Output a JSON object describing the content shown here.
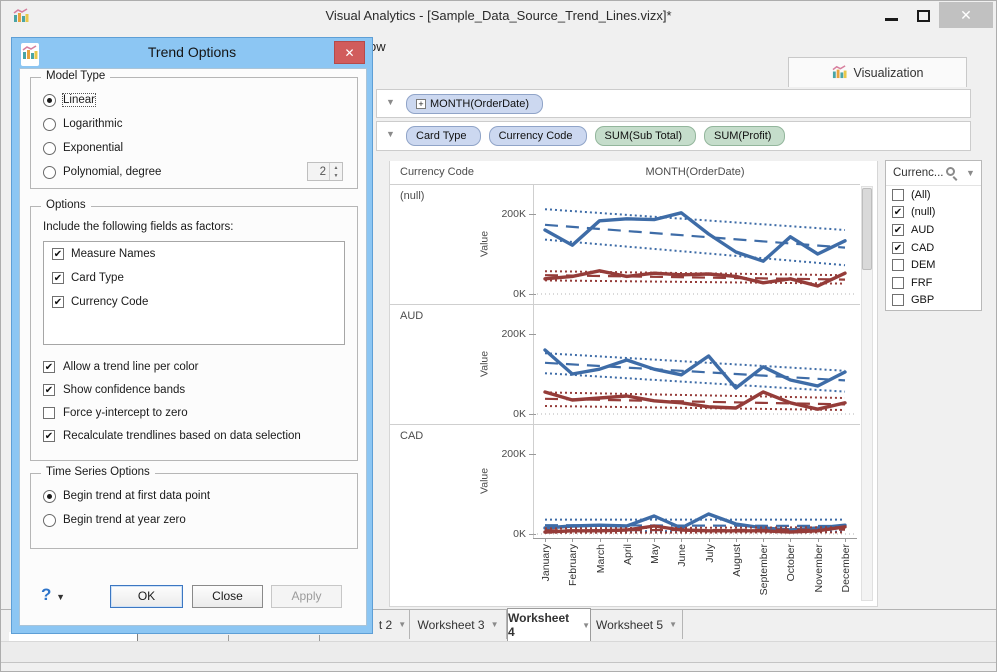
{
  "window": {
    "title": "Visual Analytics - [Sample_Data_Source_Trend_Lines.vizx]*"
  },
  "menubar": {
    "partial_label": "ow"
  },
  "viz_tab": {
    "label": "Visualization"
  },
  "icons": {
    "app": "bar-chart",
    "dialog": "bar-chart",
    "viz_tab": "bar-chart",
    "search": "magnifier",
    "dropdown": "chevron-down",
    "close": "x",
    "expand": "plus-box"
  },
  "shelves": {
    "row1": [
      {
        "label": "MONTH(OrderDate)",
        "type": "blue",
        "expand": true
      }
    ],
    "row2": [
      {
        "label": "Card Type",
        "type": "blue"
      },
      {
        "label": "Currency Code",
        "type": "blue"
      },
      {
        "label": "SUM(Sub Total)",
        "type": "green"
      },
      {
        "label": "SUM(Profit)",
        "type": "green"
      }
    ]
  },
  "dialog": {
    "title": "Trend Options",
    "close_glyph": "✕",
    "model_type": {
      "legend": "Model Type",
      "radios": [
        {
          "label": "Linear",
          "selected": true
        },
        {
          "label": "Logarithmic",
          "selected": false
        },
        {
          "label": "Exponential",
          "selected": false
        },
        {
          "label": "Polynomial, degree",
          "selected": false,
          "spinner": "2"
        }
      ]
    },
    "options": {
      "legend": "Options",
      "factors_label": "Include the following fields as factors:",
      "factors": [
        {
          "label": "Measure Names",
          "checked": true
        },
        {
          "label": "Card Type",
          "checked": true
        },
        {
          "label": "Currency Code",
          "checked": true
        }
      ],
      "checkboxes": [
        {
          "label": "Allow a trend line per color",
          "checked": true
        },
        {
          "label": "Show confidence bands",
          "checked": true
        },
        {
          "label": "Force y-intercept to zero",
          "checked": false
        },
        {
          "label": "Recalculate trendlines based on data selection",
          "checked": true
        }
      ]
    },
    "time_series": {
      "legend": "Time Series Options",
      "radios": [
        {
          "label": "Begin trend at first data point",
          "selected": true
        },
        {
          "label": "Begin trend at year zero",
          "selected": false
        }
      ]
    },
    "buttons": {
      "help": "?",
      "ok": "OK",
      "close": "Close",
      "apply": "Apply"
    }
  },
  "chart_data": {
    "type": "line",
    "row_header": "Currency Code",
    "col_header": "MONTH(OrderDate)",
    "ylabel": "Value",
    "yticks": [
      "200K",
      "0K"
    ],
    "ylim": [
      0,
      250
    ],
    "x": [
      "January",
      "February",
      "March",
      "April",
      "May",
      "June",
      "July",
      "August",
      "September",
      "October",
      "November",
      "December"
    ],
    "panels": [
      {
        "label": "(null)",
        "series": [
          {
            "name": "blue",
            "color": "#3e6ca7",
            "values": [
              160,
              122,
              183,
              188,
              186,
              203,
              150,
              105,
              82,
              143,
              100,
              133
            ],
            "trend": [
              173,
              116
            ],
            "band_upper": [
              212,
              160
            ],
            "band_lower": [
              136,
              72
            ]
          },
          {
            "name": "red",
            "color": "#953c39",
            "values": [
              38,
              44,
              58,
              44,
              52,
              48,
              50,
              44,
              28,
              38,
              20,
              52
            ],
            "trend": [
              47,
              36
            ],
            "band_upper": [
              57,
              47
            ],
            "band_lower": [
              34,
              26
            ]
          }
        ]
      },
      {
        "label": "AUD",
        "series": [
          {
            "name": "blue",
            "color": "#3e6ca7",
            "values": [
              160,
              100,
              112,
              135,
              112,
              98,
              145,
              65,
              118,
              85,
              70,
              105
            ],
            "trend": [
              128,
              84
            ],
            "band_upper": [
              152,
              108
            ],
            "band_lower": [
              102,
              56
            ]
          },
          {
            "name": "red",
            "color": "#953c39",
            "values": [
              55,
              35,
              40,
              45,
              33,
              28,
              18,
              15,
              55,
              28,
              12,
              28
            ],
            "trend": [
              38,
              24
            ],
            "band_upper": [
              54,
              40
            ],
            "band_lower": [
              20,
              10
            ]
          }
        ]
      },
      {
        "label": "CAD",
        "series": [
          {
            "name": "blue",
            "color": "#3e6ca7",
            "values": [
              15,
              20,
              22,
              20,
              45,
              15,
              50,
              25,
              15,
              10,
              15,
              22
            ],
            "trend": [
              22,
              20
            ],
            "band_upper": [
              36,
              36
            ],
            "band_lower": [
              8,
              6
            ]
          },
          {
            "name": "red",
            "color": "#953c39",
            "values": [
              5,
              8,
              8,
              10,
              20,
              10,
              8,
              8,
              8,
              5,
              8,
              18
            ],
            "trend": [
              9,
              11
            ],
            "band_upper": [
              14,
              17
            ],
            "band_lower": [
              3,
              4
            ]
          }
        ]
      }
    ]
  },
  "filter": {
    "title": "Currenc...",
    "items": [
      {
        "label": "(All)",
        "checked": false
      },
      {
        "label": "(null)",
        "checked": true
      },
      {
        "label": "AUD",
        "checked": true
      },
      {
        "label": "CAD",
        "checked": true
      },
      {
        "label": "DEM",
        "checked": false
      },
      {
        "label": "FRF",
        "checked": false
      },
      {
        "label": "GBP",
        "checked": false
      }
    ]
  },
  "tabs": [
    {
      "label": "t 2",
      "active": false
    },
    {
      "label": "Worksheet 3",
      "active": false
    },
    {
      "label": "Worksheet 4",
      "active": true
    },
    {
      "label": "Worksheet 5",
      "active": false
    }
  ]
}
